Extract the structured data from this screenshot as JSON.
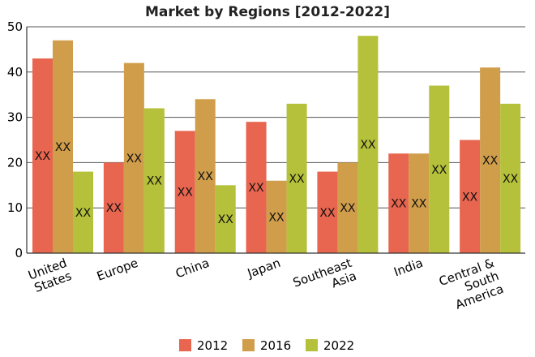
{
  "chart_data": {
    "type": "bar",
    "title": "Market by Regions [2012-2022]",
    "xlabel": "",
    "ylabel": "",
    "ylim": [
      0,
      50
    ],
    "yticks": [
      0,
      10,
      20,
      30,
      40,
      50
    ],
    "grid": true,
    "legend_position": "bottom",
    "categories": [
      [
        "United",
        "States"
      ],
      [
        "Europe"
      ],
      [
        "China"
      ],
      [
        "Japan"
      ],
      [
        "Southeast",
        "Asia"
      ],
      [
        "India"
      ],
      [
        "Central &",
        "South",
        "America"
      ]
    ],
    "data_label": "XX",
    "series": [
      {
        "name": "2012",
        "color": "#e8654f",
        "values": [
          43,
          20,
          27,
          29,
          18,
          22,
          25
        ]
      },
      {
        "name": "2016",
        "color": "#d09d4a",
        "values": [
          47,
          42,
          34,
          16,
          20,
          22,
          41
        ]
      },
      {
        "name": "2022",
        "color": "#b5c13a",
        "values": [
          18,
          32,
          15,
          33,
          48,
          37,
          33
        ]
      }
    ]
  }
}
